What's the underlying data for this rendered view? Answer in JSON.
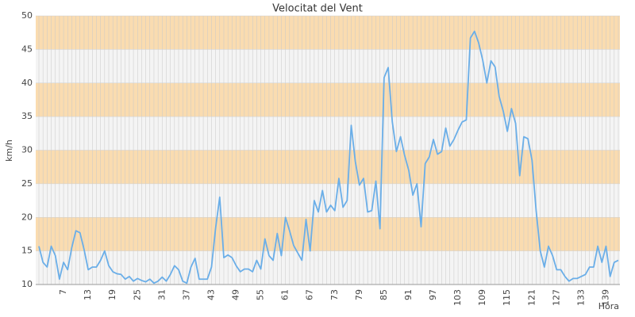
{
  "chart_data": {
    "type": "line",
    "title": "Velocitat del Vent",
    "y_label": "km/h",
    "x_label": "Hora",
    "categories": [
      null,
      null,
      null,
      null,
      null,
      null,
      "7",
      null,
      null,
      null,
      null,
      null,
      "13",
      null,
      null,
      null,
      null,
      null,
      "19",
      null,
      null,
      null,
      null,
      null,
      "25",
      null,
      null,
      null,
      null,
      null,
      "31",
      null,
      null,
      null,
      null,
      null,
      "37",
      null,
      null,
      null,
      null,
      null,
      "43",
      null,
      null,
      null,
      null,
      null,
      "49",
      null,
      null,
      null,
      null,
      null,
      "55",
      null,
      null,
      null,
      null,
      null,
      "61",
      null,
      null,
      null,
      null,
      null,
      "67",
      null,
      null,
      null,
      null,
      null,
      "73",
      null,
      null,
      null,
      null,
      null,
      "79",
      null,
      null,
      null,
      null,
      null,
      "85",
      null,
      null,
      null,
      null,
      null,
      "91",
      null,
      null,
      null,
      null,
      null,
      "97",
      null,
      null,
      null,
      null,
      null,
      "103",
      null,
      null,
      null,
      null,
      null,
      "109",
      null,
      null,
      null,
      null,
      null,
      "115",
      null,
      null,
      null,
      null,
      null,
      "121",
      null,
      null,
      null,
      null,
      null,
      "127",
      null,
      null,
      null,
      null,
      null,
      "133",
      null,
      null,
      null,
      null,
      null,
      "139",
      null,
      null,
      null
    ],
    "series": [
      {
        "name": "Velocitat del Vent",
        "color": "#6aaee8",
        "values": [
          15.7,
          13.3,
          12.6,
          15.7,
          14.3,
          10.8,
          13.3,
          12.2,
          15.5,
          18.0,
          17.7,
          15.2,
          12.2,
          12.6,
          12.6,
          13.6,
          15.0,
          12.8,
          11.9,
          11.6,
          11.5,
          10.8,
          11.2,
          10.5,
          10.9,
          10.6,
          10.4,
          10.8,
          10.2,
          10.5,
          11.1,
          10.5,
          11.5,
          12.8,
          12.2,
          10.5,
          10.2,
          12.6,
          13.9,
          10.8,
          10.8,
          10.8,
          12.6,
          18.4,
          23.0,
          14.0,
          14.4,
          14.0,
          12.8,
          11.9,
          12.3,
          12.3,
          11.9,
          13.6,
          12.3,
          16.8,
          14.3,
          13.6,
          17.6,
          14.3,
          20.0,
          18.0,
          15.8,
          14.7,
          13.6,
          19.7,
          15.0,
          22.5,
          20.8,
          24.0,
          20.8,
          21.8,
          21.0,
          25.8,
          21.5,
          22.5,
          33.7,
          28.3,
          24.8,
          25.8,
          20.8,
          21.0,
          25.4,
          18.3,
          40.8,
          42.3,
          34.2,
          29.8,
          32.0,
          29.2,
          27.0,
          23.3,
          25.0,
          18.6,
          28.0,
          29.0,
          31.6,
          29.4,
          29.8,
          33.3,
          30.6,
          31.6,
          33.0,
          34.2,
          34.5,
          46.7,
          47.7,
          46.0,
          43.4,
          40.0,
          43.3,
          42.4,
          38.0,
          35.8,
          32.8,
          36.2,
          34.0,
          26.2,
          32.0,
          31.7,
          28.5,
          21.0,
          15.0,
          12.6,
          15.7,
          14.3,
          12.2,
          12.2,
          11.2,
          10.5,
          10.9,
          10.9,
          11.2,
          11.5,
          12.6,
          12.6,
          15.7,
          13.3,
          15.7,
          11.2,
          13.3,
          13.6
        ]
      }
    ],
    "ylim": [
      10,
      50
    ],
    "yticks": [
      10,
      15,
      20,
      25,
      30,
      35,
      40,
      45,
      50
    ],
    "band_colors": [
      "#f4f4f4",
      "#fadcb0"
    ],
    "grid": true
  }
}
